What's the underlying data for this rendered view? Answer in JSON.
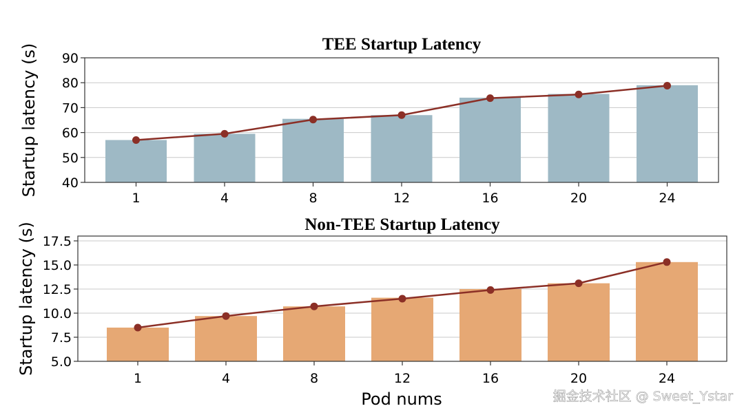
{
  "watermark": "掘金技术社区 @ Sweet_Ystar",
  "chart_data": [
    {
      "type": "bar",
      "title": "TEE Startup Latency",
      "ylabel": "Startup latency (s)",
      "xlabel": "",
      "categories": [
        "1",
        "4",
        "8",
        "12",
        "16",
        "20",
        "24"
      ],
      "values": [
        57,
        59.5,
        65.5,
        67,
        74,
        75.5,
        79
      ],
      "line_values": [
        57,
        59.5,
        65.2,
        67,
        73.8,
        75.3,
        78.8
      ],
      "ylim": [
        40,
        90
      ],
      "yticks": [
        40,
        50,
        60,
        70,
        80,
        90
      ],
      "ytick_labels": [
        "40",
        "50",
        "60",
        "70",
        "80",
        "90"
      ],
      "grid": true,
      "bar_color": "#9eb9c5",
      "line_color": "#8b2f26"
    },
    {
      "type": "bar",
      "title": "Non-TEE Startup Latency",
      "ylabel": "Startup latency (s)",
      "xlabel": "Pod nums",
      "categories": [
        "1",
        "4",
        "8",
        "12",
        "16",
        "20",
        "24"
      ],
      "values": [
        8.5,
        9.7,
        10.7,
        11.6,
        12.5,
        13.1,
        15.3
      ],
      "line_values": [
        8.5,
        9.7,
        10.7,
        11.5,
        12.4,
        13.1,
        15.3
      ],
      "ylim": [
        5,
        18
      ],
      "yticks": [
        5,
        7.5,
        10,
        12.5,
        15,
        17.5
      ],
      "ytick_labels": [
        "5.0",
        "7.5",
        "10.0",
        "12.5",
        "15.0",
        "17.5"
      ],
      "grid": true,
      "bar_color": "#e6a874",
      "line_color": "#8b2f26"
    }
  ]
}
